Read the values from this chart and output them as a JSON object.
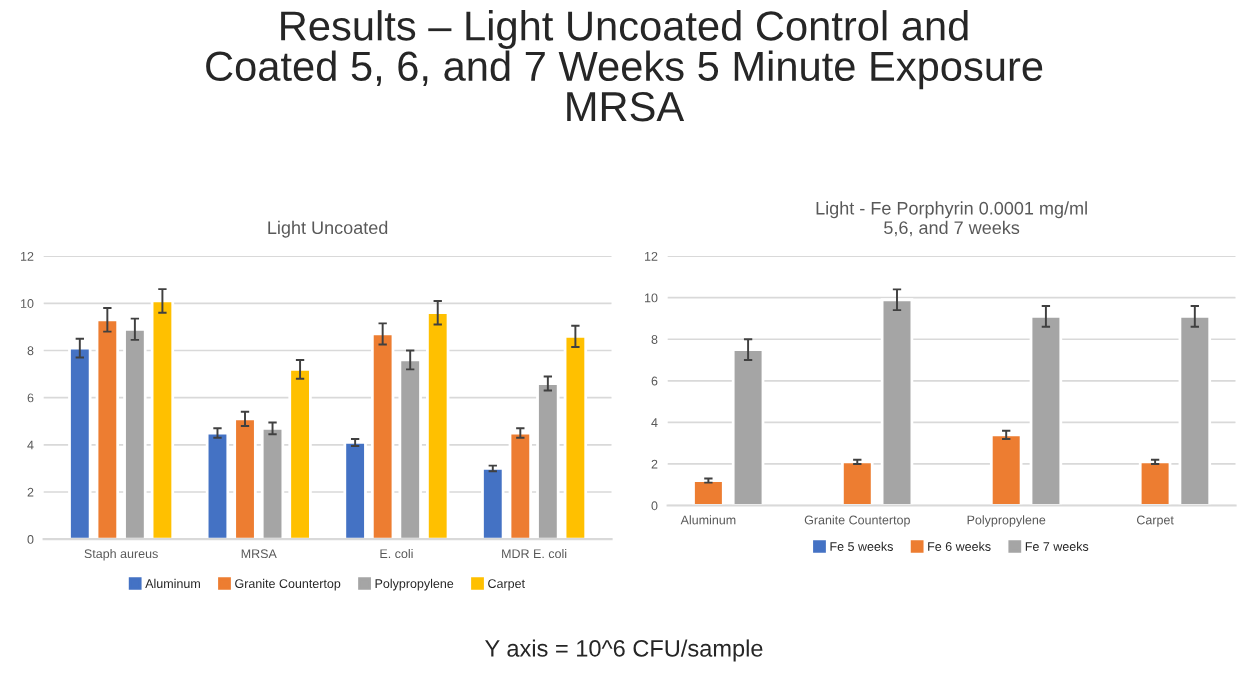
{
  "chart_data": [
    {
      "type": "bar",
      "title": "Light Uncoated",
      "categories": [
        "Staph aureus",
        "MRSA",
        "E. coli",
        "MDR E. coli"
      ],
      "series": [
        {
          "name": "Aluminum",
          "color": "#4472c4",
          "values": [
            8.1,
            4.5,
            4.1,
            3.0
          ],
          "errors": [
            0.4,
            0.2,
            0.15,
            0.12
          ]
        },
        {
          "name": "Granite Countertop",
          "color": "#ed7d31",
          "values": [
            9.3,
            5.1,
            8.7,
            4.5
          ],
          "errors": [
            0.5,
            0.3,
            0.45,
            0.2
          ]
        },
        {
          "name": "Polypropylene",
          "color": "#a5a5a5",
          "values": [
            8.9,
            4.7,
            7.6,
            6.6
          ],
          "errors": [
            0.45,
            0.25,
            0.4,
            0.3
          ]
        },
        {
          "name": "Carpet",
          "color": "#ffc000",
          "values": [
            10.1,
            7.2,
            9.6,
            8.6
          ],
          "errors": [
            0.5,
            0.4,
            0.5,
            0.45
          ]
        }
      ],
      "ylim": [
        0,
        12
      ],
      "yticks": [
        0,
        2,
        4,
        6,
        8,
        10,
        12
      ],
      "grid": "y",
      "legend": "bottom",
      "annotations": [
        "Results – Light Uncoated Control and\nCoated 5, 6, and 7 Weeks 5 Minute Exposure\nMRSA",
        "Y axis = 10^6 CFU/sample"
      ]
    },
    {
      "type": "bar",
      "title": "Light - Fe Porphyrin 0.0001 mg/ml",
      "subtitle": "5,6, and 7 weeks",
      "categories": [
        "Aluminum",
        "Granite Countertop",
        "Polypropylene",
        "Carpet"
      ],
      "series": [
        {
          "name": "Fe 5 weeks",
          "color": "#4472c4",
          "values": [
            null,
            null,
            null,
            null
          ]
        },
        {
          "name": "Fe 6 weeks",
          "color": "#ed7d31",
          "values": [
            1.2,
            2.1,
            3.4,
            2.1
          ],
          "errors": [
            0.1,
            0.1,
            0.2,
            0.1
          ]
        },
        {
          "name": "Fe 7 weeks",
          "color": "#a5a5a5",
          "values": [
            7.5,
            9.9,
            9.1,
            9.1
          ],
          "errors": [
            0.5,
            0.5,
            0.5,
            0.5
          ]
        }
      ],
      "ylim": [
        0,
        12
      ],
      "yticks": [
        0,
        2,
        4,
        6,
        8,
        10,
        12
      ],
      "grid": "y",
      "legend": "bottom"
    }
  ]
}
